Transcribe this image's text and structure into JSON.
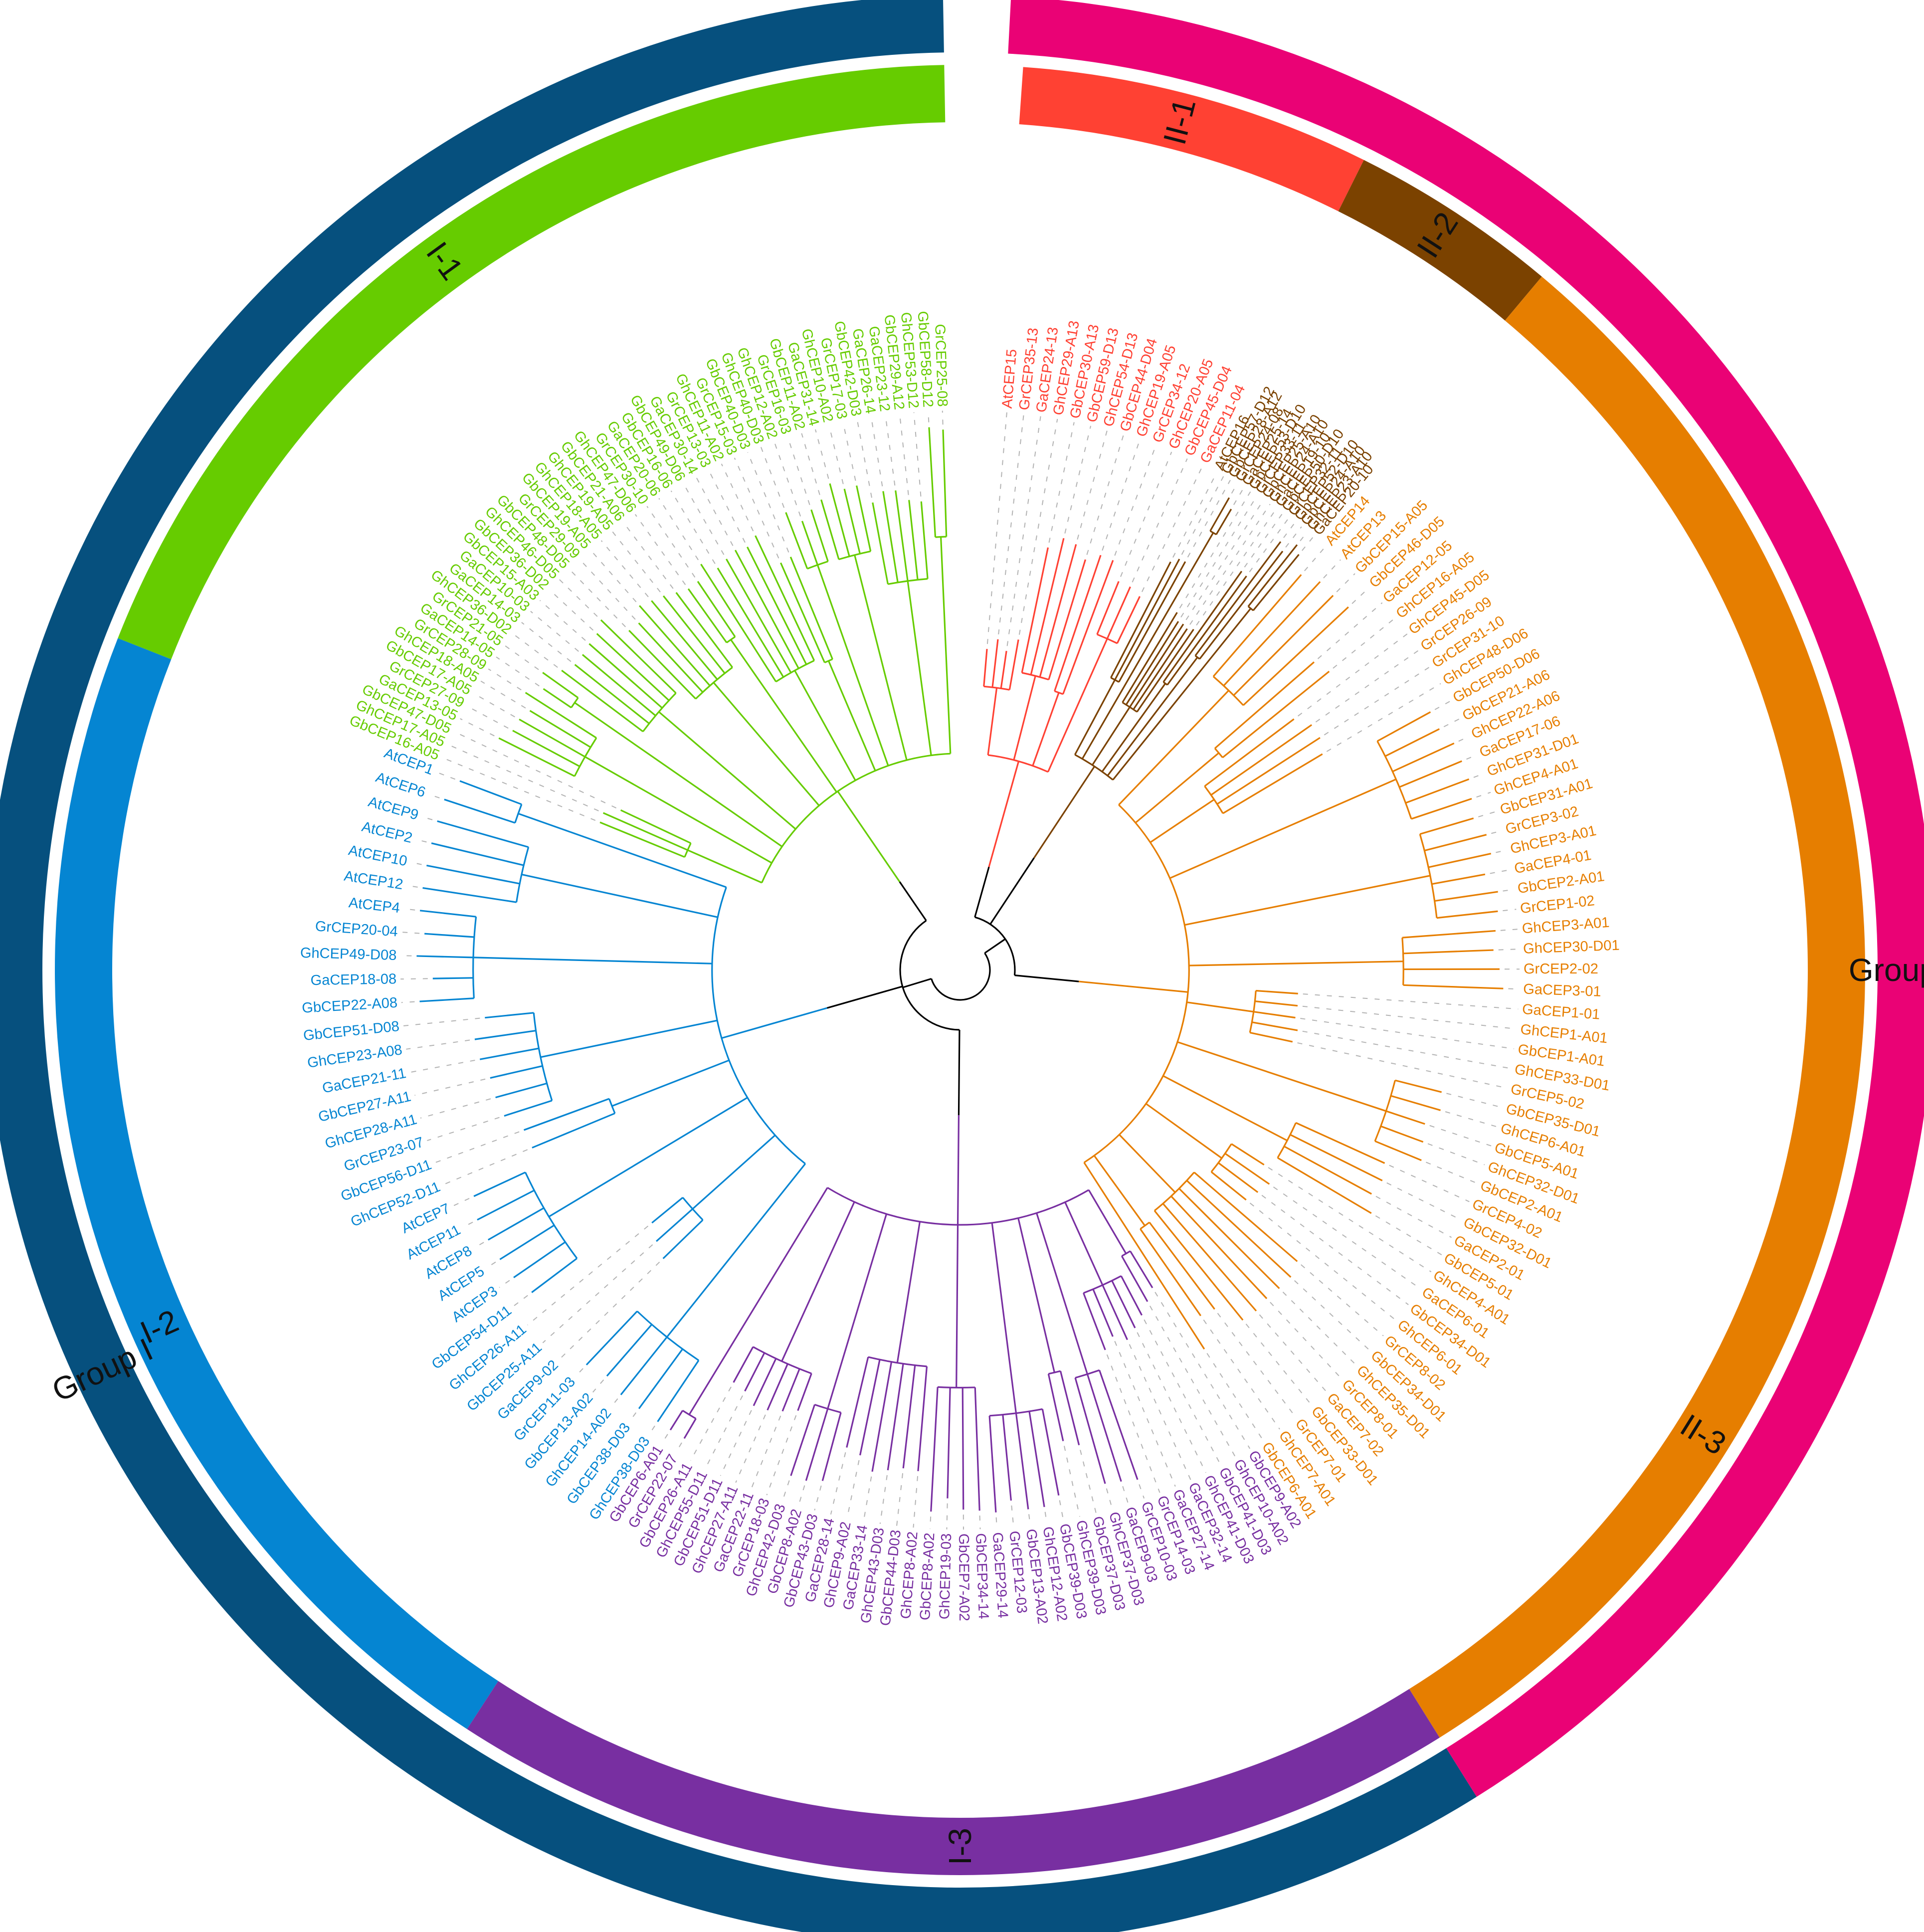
{
  "colors": {
    "group_i": "#06507e",
    "group_ii": "#ea0275",
    "I-1": "#66cc00",
    "I-2": "#0585d2",
    "I-3": "#782fa1",
    "II-1": "#ff4133",
    "II-2": "#7b4200",
    "II-3": "#e67e00",
    "backbone": "#000000",
    "guide": "#b3b3b3",
    "label_text": "#111111"
  },
  "groups": [
    {
      "id": "group_i",
      "label": "Group I",
      "subclades": [
        "I-1",
        "I-2",
        "I-3"
      ]
    },
    {
      "id": "group_ii",
      "label": "Group II",
      "subclades": [
        "II-1",
        "II-2",
        "II-3"
      ]
    }
  ],
  "clades": [
    {
      "id": "I-1",
      "label": "I-1",
      "leaves": [
        "GbCEP16-A05",
        "GhCEP17-A05",
        "GbCEP47-D05",
        "GaCEP13-05",
        "GrCEP27-09",
        "GbCEP17-A05",
        "GhCEP18-A05",
        "GrCEP28-09",
        "GaCEP14-05",
        "GrCEP21-05",
        "GhCEP36-D02",
        "GaCEP14-03",
        "GaCEP10-03",
        "GbCEP15-A03",
        "GbCEP36-D02",
        "GhCEP46-D05",
        "GbCEP48-D05",
        "GrCEP29-09",
        "GbCEP19-A05",
        "GhCEP18-A05",
        "GhCEP19-A05",
        "GbCEP21-A06",
        "GhCEP47-D06",
        "GrCEP30-10",
        "GaCEP20-06",
        "GbCEP16-06",
        "GbCEP49-D06",
        "GaCEP30-14",
        "GrCEP13-03",
        "GhCEP11-A02",
        "GrCEP15-03",
        "GbCEP40-D03",
        "GhCEP40-D03",
        "GhCEP12-A02",
        "GrCEP16-03",
        "GbCEP11-A02",
        "GaCEP31-14",
        "GhCEP10-A02",
        "GrCEP17-03",
        "GbCEP42-D03",
        "GaCEP26-14",
        "GaCEP23-12",
        "GbCEP29-A12",
        "GhCEP53-D12",
        "GbCEP58-D12",
        "GrCEP25-08"
      ]
    },
    {
      "id": "I-2",
      "label": "I-2",
      "leaves": [
        "GhCEP38-D03",
        "GbCEP38-D03",
        "GhCEP14-A02",
        "GbCEP13-A02",
        "GrCEP11-03",
        "GaCEP9-02",
        "GbCEP25-A11",
        "GhCEP26-A11",
        "GbCEP54-D11",
        "AtCEP3",
        "AtCEP5",
        "AtCEP8",
        "AtCEP11",
        "AtCEP7",
        "GhCEP52-D11",
        "GbCEP56-D11",
        "GrCEP23-07",
        "GhCEP28-A11",
        "GbCEP27-A11",
        "GaCEP21-11",
        "GhCEP23-A08",
        "GbCEP51-D08",
        "GbCEP22-A08",
        "GaCEP18-08",
        "GhCEP49-D08",
        "GrCEP20-04",
        "AtCEP4",
        "AtCEP12",
        "AtCEP10",
        "AtCEP2",
        "AtCEP9",
        "AtCEP6",
        "AtCEP1"
      ]
    },
    {
      "id": "I-3",
      "label": "I-3",
      "leaves": [
        "GbCEP9-A02",
        "GhCEP10-A02",
        "GbCEP41-D03",
        "GhCEP41-D03",
        "GaCEP32-14",
        "GaCEP27-14",
        "GrCEP14-03",
        "GrCEP10-03",
        "GaCEP9-03",
        "GhCEP37-D03",
        "GbCEP37-D03",
        "GhCEP39-D03",
        "GbCEP39-D03",
        "GhCEP12-A02",
        "GbCEP13-A02",
        "GrCEP12-03",
        "GaCEP29-14",
        "GbCEP34-14",
        "GbCEP7-A02",
        "GhCEP19-03",
        "GbCEP8-A02",
        "GhCEP8-A02",
        "GbCEP44-D03",
        "GhCEP43-D03",
        "GaCEP33-14",
        "GhCEP9-A02",
        "GaCEP28-14",
        "GbCEP43-D03",
        "GbCEP8-A02",
        "GhCEP42-D03",
        "GrCEP18-03",
        "GaCEP22-11",
        "GhCEP27-A11",
        "GbCEP51-D11",
        "GhCEP55-D11",
        "GbCEP26-A11",
        "GrCEP22-07",
        "GbCEP6-A01"
      ]
    },
    {
      "id": "II-1",
      "label": "II-1",
      "leaves": [
        "AtCEP15",
        "GrCEP35-13",
        "GaCEP24-13",
        "GhCEP29-A13",
        "GbCEP30-A13",
        "GbCEP59-D13",
        "GhCEP54-D13",
        "GbCEP44-D04",
        "GhCEP19-A05",
        "GrCEP34-12",
        "GhCEP20-A05",
        "GbCEP45-D04",
        "GaCEP11-04"
      ]
    },
    {
      "id": "II-2",
      "label": "II-2",
      "leaves": [
        "AtCEP16",
        "GbCEP57-D12",
        "GbCEP28-A12",
        "GrCEP24-08",
        "GaCEP25-14",
        "GbCEP53-D10",
        "GrCEP33-11",
        "GbCEP25-A10",
        "GhCEP24-A10",
        "GaCEP19-10",
        "GbCEP50-D10",
        "GrCEP32-11",
        "GbCEP52-D10",
        "GbCEP24-A10",
        "GhCEP23-A10",
        "GaCEP20-10"
      ]
    },
    {
      "id": "II-3",
      "label": "II-3",
      "leaves": [
        "AtCEP14",
        "AtCEP13",
        "GbCEP15-A05",
        "GbCEP46-D05",
        "GaCEP12-05",
        "GhCEP16-A05",
        "GhCEP45-D05",
        "GrCEP26-09",
        "GrCEP31-10",
        "GhCEP48-D06",
        "GbCEP50-D06",
        "GbCEP21-A06",
        "GhCEP22-A06",
        "GaCEP17-06",
        "GhCEP31-D01",
        "GhCEP4-A01",
        "GbCEP31-A01",
        "GrCEP3-02",
        "GhCEP3-A01",
        "GaCEP4-01",
        "GbCEP2-A01",
        "GrCEP1-02",
        "GhCEP3-A01",
        "GhCEP30-D01",
        "GrCEP2-02",
        "GaCEP3-01",
        "GaCEP1-01",
        "GhCEP1-A01",
        "GbCEP1-A01",
        "GhCEP33-D01",
        "GrCEP5-02",
        "GbCEP35-D01",
        "GhCEP6-A01",
        "GbCEP5-A01",
        "GhCEP32-D01",
        "GbCEP2-A01",
        "GrCEP4-02",
        "GbCEP32-D01",
        "GaCEP2-01",
        "GbCEP5-01",
        "GhCEP4-A01",
        "GaCEP6-01",
        "GbCEP34-D01",
        "GhCEP6-01",
        "GrCEP8-02",
        "GbCEP34-D01",
        "GhCEP35-D01",
        "GrCEP8-01",
        "GaCEP7-02",
        "GbCEP33-D01",
        "GrCEP7-01",
        "GhCEP7-A01",
        "GbCEP6-A01"
      ]
    }
  ]
}
